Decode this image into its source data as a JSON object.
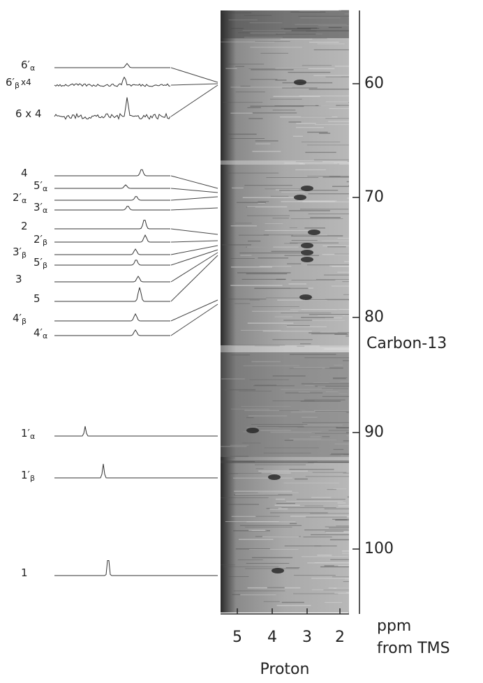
{
  "carbon_axis": {
    "label": "Carbon-13",
    "ticks": [
      "60",
      "70",
      "80",
      "90",
      "100"
    ]
  },
  "proton_axis": {
    "label": "Proton",
    "ticks": [
      "5",
      "4",
      "3",
      "2"
    ]
  },
  "units": {
    "line1": "ppm",
    "line2": "from TMS"
  },
  "traces": [
    {
      "main": "6′",
      "sub": "α"
    },
    {
      "main": "6′",
      "sub": "β",
      "suffix": "x4"
    },
    {
      "main": "6 x 4"
    },
    {
      "main": "4"
    },
    {
      "main": "5′",
      "sub": "α"
    },
    {
      "main": "2′",
      "sub": "α"
    },
    {
      "main": "3′",
      "sub": "α"
    },
    {
      "main": "2"
    },
    {
      "main": "2′",
      "sub": "β"
    },
    {
      "main": "3′",
      "sub": "β"
    },
    {
      "main": "5′",
      "sub": "β"
    },
    {
      "main": "3"
    },
    {
      "main": "5"
    },
    {
      "main": "4′",
      "sub": "β"
    },
    {
      "main": "4′",
      "sub": "α"
    },
    {
      "main": "1′",
      "sub": "α"
    },
    {
      "main": "1′",
      "sub": "β"
    },
    {
      "main": "1"
    }
  ]
}
